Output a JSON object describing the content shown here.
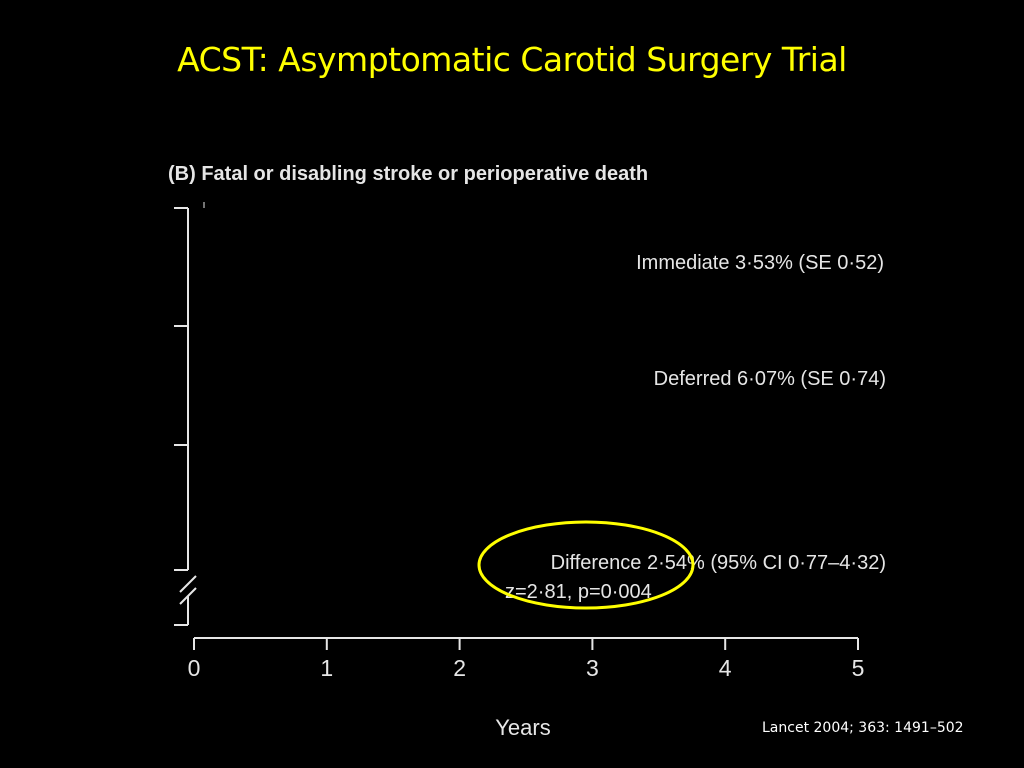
{
  "slide": {
    "title": "ACST: Asymptomatic Carotid Surgery Trial",
    "citation": "Lancet 2004; 363: 1491–502"
  },
  "chart_data": {
    "type": "line",
    "title": "(B) Fatal or disabling stroke or perioperative death",
    "xlabel": "Years",
    "ylabel": "",
    "xlim": [
      0,
      5
    ],
    "x_ticks": [
      "0",
      "1",
      "2",
      "3",
      "4",
      "5"
    ],
    "y_axis_broken": true,
    "series": [],
    "annotations": [
      {
        "id": "immediate",
        "text": "Immediate 3·53% (SE 0·52)"
      },
      {
        "id": "deferred",
        "text": "Deferred 6·07% (SE 0·74)"
      },
      {
        "id": "difference",
        "text": "Difference 2·54% (95% CI 0·77–4·32)"
      },
      {
        "id": "stats",
        "text": "z=2·81, p=0·004"
      }
    ],
    "highlight": {
      "shape": "ellipse",
      "color": "#ffff00",
      "target": "difference"
    }
  }
}
